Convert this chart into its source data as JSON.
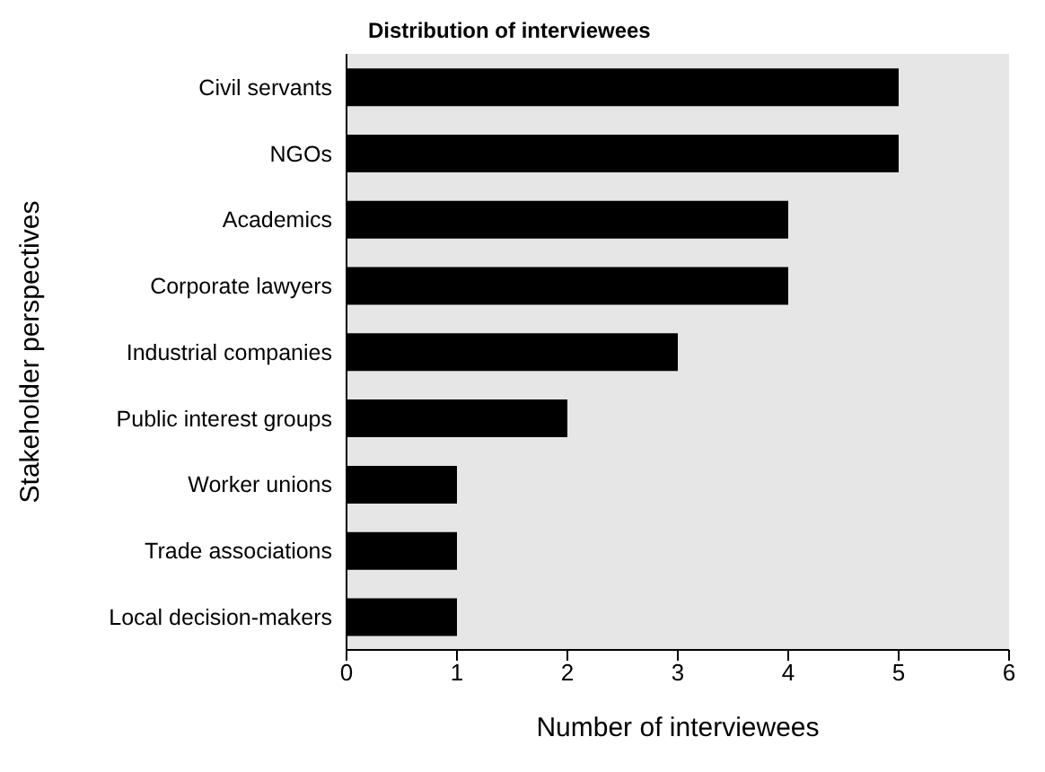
{
  "chart_data": {
    "type": "bar",
    "orientation": "horizontal",
    "title": "Distribution of interviewees",
    "xlabel": "Number of interviewees",
    "ylabel": "Stakeholder perspectives",
    "categories": [
      "Civil servants",
      "NGOs",
      "Academics",
      "Corporate lawyers",
      "Industrial companies",
      "Public interest groups",
      "Worker unions",
      "Trade associations",
      "Local decision-makers"
    ],
    "values": [
      5,
      5,
      4,
      4,
      3,
      2,
      1,
      1,
      1
    ],
    "color": "#000000",
    "xlim": [
      0,
      6
    ],
    "xticks": [
      0,
      1,
      2,
      3,
      4,
      5,
      6
    ],
    "grid": false
  }
}
